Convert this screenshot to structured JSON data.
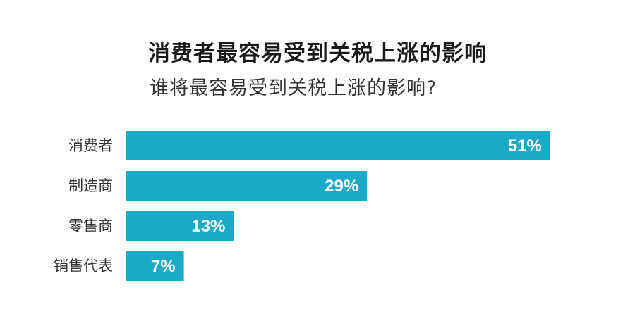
{
  "title": "消费者最容易受到关税上涨的影响",
  "subtitle": "谁将最容易受到关税上涨的影响?",
  "colors": {
    "bar": "#1aaac8",
    "text": "#333333"
  },
  "chart_data": {
    "type": "bar",
    "orientation": "horizontal",
    "title": "消费者最容易受到关税上涨的影响",
    "subtitle": "谁将最容易受到关税上涨的影响?",
    "categories": [
      "消费者",
      "制造商",
      "零售商",
      "销售代表"
    ],
    "values": [
      51,
      29,
      13,
      7
    ],
    "value_labels": [
      "51%",
      "29%",
      "13%",
      "7%"
    ],
    "unit": "%",
    "xlim": [
      0,
      100
    ],
    "grid": false,
    "legend": "none"
  }
}
